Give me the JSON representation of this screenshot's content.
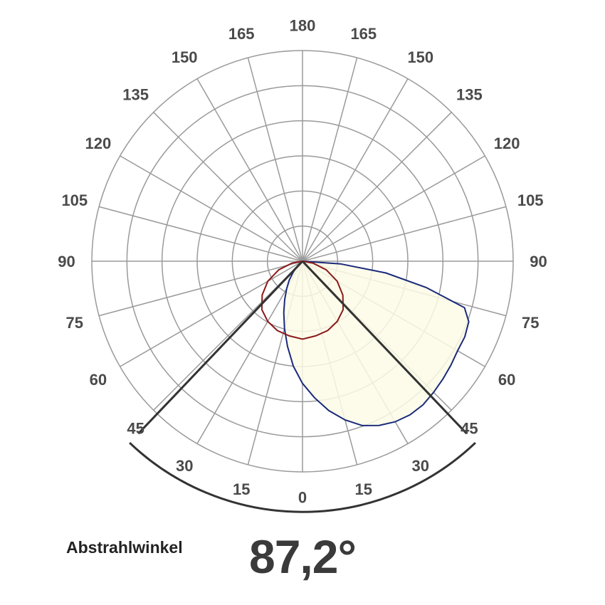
{
  "chart_data": {
    "type": "polar",
    "angle_tick_labels": {
      "left": [
        "0",
        "15",
        "30",
        "45",
        "60",
        "75",
        "90",
        "105",
        "120",
        "135",
        "150",
        "165",
        "180"
      ],
      "right": [
        "15",
        "30",
        "45",
        "60",
        "75",
        "90",
        "105",
        "120",
        "135",
        "150",
        "165"
      ]
    },
    "radial_rings": 6,
    "grid": true,
    "series": [
      {
        "color": "#1a2a7a",
        "fill": "#fdfbe8",
        "points": [
          {
            "angle": -55,
            "r": 0.0
          },
          {
            "angle": -50,
            "r": 0.02
          },
          {
            "angle": -45,
            "r": 0.04
          },
          {
            "angle": -40,
            "r": 0.07
          },
          {
            "angle": -35,
            "r": 0.11
          },
          {
            "angle": -30,
            "r": 0.15
          },
          {
            "angle": -25,
            "r": 0.2
          },
          {
            "angle": -20,
            "r": 0.26
          },
          {
            "angle": -15,
            "r": 0.33
          },
          {
            "angle": -10,
            "r": 0.41
          },
          {
            "angle": -5,
            "r": 0.5
          },
          {
            "angle": 0,
            "r": 0.58
          },
          {
            "angle": 5,
            "r": 0.65
          },
          {
            "angle": 10,
            "r": 0.72
          },
          {
            "angle": 15,
            "r": 0.78
          },
          {
            "angle": 20,
            "r": 0.83
          },
          {
            "angle": 25,
            "r": 0.86
          },
          {
            "angle": 30,
            "r": 0.88
          },
          {
            "angle": 35,
            "r": 0.89
          },
          {
            "angle": 40,
            "r": 0.89
          },
          {
            "angle": 45,
            "r": 0.88
          },
          {
            "angle": 50,
            "r": 0.87
          },
          {
            "angle": 55,
            "r": 0.86
          },
          {
            "angle": 60,
            "r": 0.85
          },
          {
            "angle": 65,
            "r": 0.85
          },
          {
            "angle": 70,
            "r": 0.84
          },
          {
            "angle": 74,
            "r": 0.8
          },
          {
            "angle": 78,
            "r": 0.6
          },
          {
            "angle": 82,
            "r": 0.4
          },
          {
            "angle": 86,
            "r": 0.18
          },
          {
            "angle": 90,
            "r": 0.0
          }
        ]
      },
      {
        "color": "#8b1a1a",
        "points": [
          {
            "angle": -90,
            "r": 0.0
          },
          {
            "angle": -80,
            "r": 0.05
          },
          {
            "angle": -70,
            "r": 0.12
          },
          {
            "angle": -60,
            "r": 0.19
          },
          {
            "angle": -50,
            "r": 0.25
          },
          {
            "angle": -40,
            "r": 0.3
          },
          {
            "angle": -30,
            "r": 0.33
          },
          {
            "angle": -20,
            "r": 0.35
          },
          {
            "angle": -10,
            "r": 0.36
          },
          {
            "angle": 0,
            "r": 0.37
          },
          {
            "angle": 10,
            "r": 0.36
          },
          {
            "angle": 20,
            "r": 0.35
          },
          {
            "angle": 30,
            "r": 0.33
          },
          {
            "angle": 40,
            "r": 0.3
          },
          {
            "angle": 50,
            "r": 0.25
          },
          {
            "angle": 60,
            "r": 0.19
          },
          {
            "angle": 70,
            "r": 0.12
          },
          {
            "angle": 80,
            "r": 0.05
          },
          {
            "angle": 90,
            "r": 0.0
          }
        ]
      }
    ],
    "beam_angle_deg": 87.2,
    "beam_label": "Abstrahlwinkel",
    "beam_value_text": "87,2°"
  }
}
